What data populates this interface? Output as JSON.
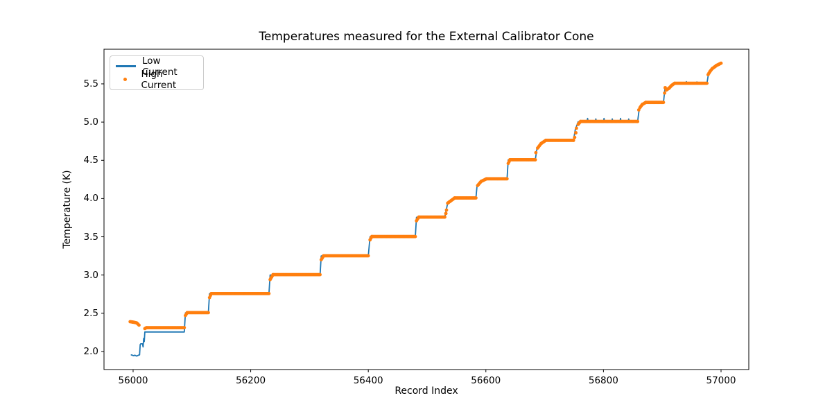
{
  "figure": {
    "title": "Temperatures measured for the External Calibrator Cone",
    "xlabel": "Record Index",
    "ylabel": "Temperature (K)",
    "background_color": "#ffffff",
    "frame_color": "#000000"
  },
  "legend": {
    "items": [
      {
        "label": "Low Current",
        "color": "#1f77b4",
        "marker": "line"
      },
      {
        "label": "High Current",
        "color": "#ff7f0e",
        "marker": "dot"
      }
    ]
  },
  "chart_data": {
    "type": "line",
    "title": "Temperatures measured for the External Calibrator Cone",
    "xlabel": "Record Index",
    "ylabel": "Temperature (K)",
    "xlim": [
      55950.5,
      57047.2
    ],
    "ylim": [
      1.764,
      5.953
    ],
    "x_ticks": [
      56000,
      56200,
      56400,
      56600,
      56800,
      57000
    ],
    "y_ticks": [
      2.0,
      2.5,
      3.0,
      3.5,
      4.0,
      4.5,
      5.0,
      5.5
    ],
    "grid": false,
    "legend_position": "upper left",
    "series": [
      {
        "name": "Low Current",
        "render": "line",
        "color": "#1f77b4",
        "line_width": 1.8,
        "points": [
          [
            55997,
            1.955
          ],
          [
            56001,
            1.945
          ],
          [
            56003,
            1.952
          ],
          [
            56006,
            1.94
          ],
          [
            56010,
            1.955
          ],
          [
            56011,
            1.955
          ],
          [
            56012,
            2.09
          ],
          [
            56013,
            2.1
          ],
          [
            56016,
            2.1
          ],
          [
            56017,
            2.06
          ],
          [
            56018,
            2.17
          ],
          [
            56019,
            2.13
          ],
          [
            56020,
            2.255
          ],
          [
            56087,
            2.255
          ],
          [
            56089,
            2.505
          ],
          [
            56128,
            2.505
          ],
          [
            56130,
            2.755
          ],
          [
            56231,
            2.755
          ],
          [
            56233,
            3.0
          ],
          [
            56318,
            3.0
          ],
          [
            56320,
            3.25
          ],
          [
            56400,
            3.25
          ],
          [
            56403,
            3.5
          ],
          [
            56480,
            3.5
          ],
          [
            56482,
            3.755
          ],
          [
            56530,
            3.755
          ],
          [
            56535,
            3.94
          ],
          [
            56547,
            4.005
          ],
          [
            56583,
            4.005
          ],
          [
            56585,
            4.17
          ],
          [
            56591,
            4.22
          ],
          [
            56600,
            4.255
          ],
          [
            56636,
            4.255
          ],
          [
            56638,
            4.505
          ],
          [
            56684,
            4.505
          ],
          [
            56687,
            4.66
          ],
          [
            56693,
            4.72
          ],
          [
            56701,
            4.76
          ],
          [
            56749,
            4.76
          ],
          [
            56752,
            4.9
          ],
          [
            56757,
            5.005
          ],
          [
            56772,
            5.005
          ],
          [
            56773,
            5.048
          ],
          [
            56774,
            5.005
          ],
          [
            56786,
            5.005
          ],
          [
            56787,
            5.042
          ],
          [
            56788,
            5.005
          ],
          [
            56800,
            5.005
          ],
          [
            56801,
            5.048
          ],
          [
            56802,
            5.005
          ],
          [
            56814,
            5.005
          ],
          [
            56815,
            5.042
          ],
          [
            56816,
            5.005
          ],
          [
            56828,
            5.005
          ],
          [
            56829,
            5.048
          ],
          [
            56830,
            5.005
          ],
          [
            56842,
            5.005
          ],
          [
            56843,
            5.04
          ],
          [
            56844,
            5.005
          ],
          [
            56858,
            5.005
          ],
          [
            56861,
            5.18
          ],
          [
            56865,
            5.22
          ],
          [
            56871,
            5.255
          ],
          [
            56902,
            5.255
          ],
          [
            56904,
            5.4
          ],
          [
            56905,
            5.455
          ],
          [
            56907,
            5.42
          ],
          [
            56910,
            5.44
          ],
          [
            56915,
            5.48
          ],
          [
            56919,
            5.505
          ],
          [
            56940,
            5.505
          ],
          [
            56941,
            5.53
          ],
          [
            56942,
            5.505
          ],
          [
            56958,
            5.505
          ],
          [
            56959,
            5.525
          ],
          [
            56960,
            5.505
          ],
          [
            56976,
            5.505
          ],
          [
            56978,
            5.6
          ],
          [
            56981,
            5.655
          ],
          [
            56985,
            5.7
          ],
          [
            56990,
            5.725
          ],
          [
            56995,
            5.75
          ],
          [
            57000,
            5.765
          ]
        ]
      },
      {
        "name": "High Current",
        "render": "dense-dots",
        "color": "#ff7f0e",
        "dot_radius": 2.4,
        "dot_spacing": 1.4,
        "segments": [
          [
            [
              55995,
              2.39
            ],
            [
              55999,
              2.385
            ],
            [
              56003,
              2.38
            ],
            [
              56006,
              2.373
            ],
            [
              56008,
              2.36
            ],
            [
              56010,
              2.345
            ]
          ],
          [
            [
              56020,
              2.3
            ],
            [
              56023,
              2.312
            ],
            [
              56087,
              2.312
            ]
          ],
          [
            [
              56089,
              2.47
            ],
            [
              56092,
              2.508
            ],
            [
              56128,
              2.508
            ]
          ],
          [
            [
              56130,
              2.705
            ],
            [
              56133,
              2.758
            ],
            [
              56231,
              2.758
            ]
          ],
          [
            [
              56233,
              2.94
            ],
            [
              56238,
              3.005
            ],
            [
              56318,
              3.005
            ]
          ],
          [
            [
              56320,
              3.2
            ],
            [
              56324,
              3.252
            ],
            [
              56400,
              3.252
            ]
          ],
          [
            [
              56403,
              3.46
            ],
            [
              56406,
              3.503
            ],
            [
              56480,
              3.503
            ]
          ],
          [
            [
              56482,
              3.71
            ],
            [
              56486,
              3.758
            ],
            [
              56530,
              3.758
            ],
            [
              56532,
              3.805
            ],
            [
              56533,
              3.85
            ]
          ],
          [
            [
              56535,
              3.94
            ],
            [
              56547,
              4.008
            ],
            [
              56583,
              4.008
            ]
          ],
          [
            [
              56586,
              4.17
            ],
            [
              56592,
              4.225
            ],
            [
              56601,
              4.258
            ],
            [
              56636,
              4.258
            ]
          ],
          [
            [
              56638,
              4.46
            ],
            [
              56641,
              4.508
            ],
            [
              56684,
              4.508
            ],
            [
              56685,
              4.6
            ]
          ],
          [
            [
              56688,
              4.66
            ],
            [
              56694,
              4.72
            ],
            [
              56702,
              4.762
            ],
            [
              56749,
              4.762
            ],
            [
              56751,
              4.8
            ],
            [
              56753,
              4.86
            ],
            [
              56754,
              4.92
            ]
          ],
          [
            [
              56757,
              4.97
            ],
            [
              56761,
              5.008
            ],
            [
              56858,
              5.008
            ],
            [
              56860,
              5.16
            ]
          ],
          [
            [
              56862,
              5.19
            ],
            [
              56866,
              5.23
            ],
            [
              56872,
              5.258
            ],
            [
              56902,
              5.258
            ]
          ],
          [
            [
              56904,
              5.38
            ],
            [
              56905,
              5.45
            ],
            [
              56907,
              5.42
            ],
            [
              56911,
              5.44
            ],
            [
              56916,
              5.48
            ],
            [
              56921,
              5.508
            ],
            [
              56976,
              5.508
            ]
          ],
          [
            [
              56978,
              5.62
            ],
            [
              56981,
              5.66
            ],
            [
              56985,
              5.7
            ],
            [
              56988,
              5.715
            ],
            [
              56992,
              5.74
            ],
            [
              56996,
              5.755
            ],
            [
              57000,
              5.77
            ]
          ]
        ]
      }
    ]
  }
}
